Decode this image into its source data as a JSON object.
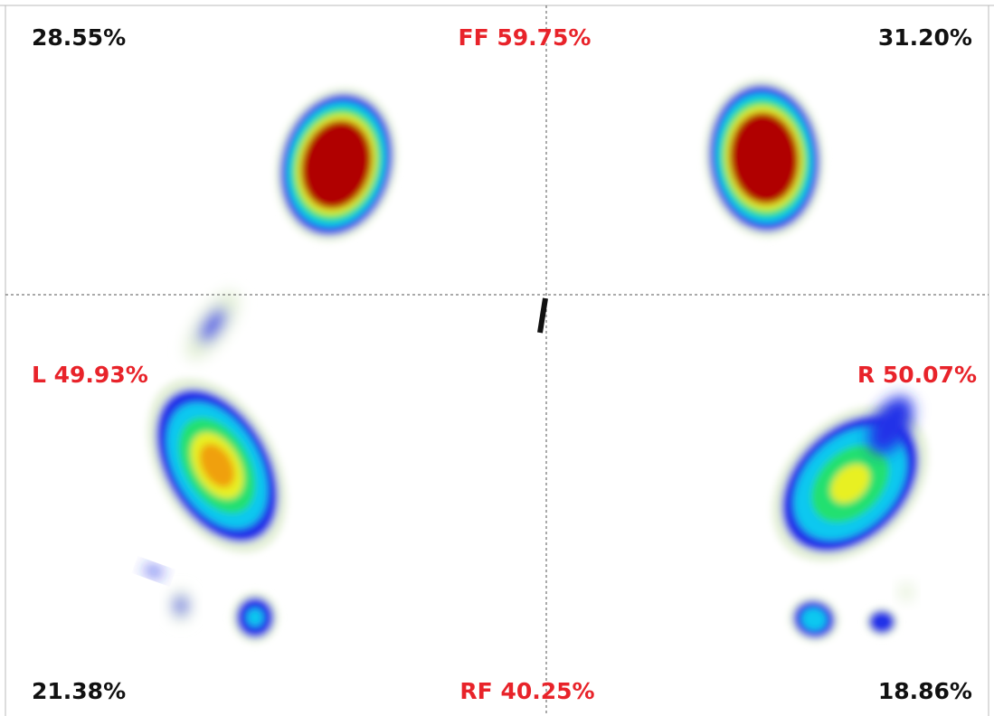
{
  "labels": {
    "top_left": "28.55%",
    "forefoot": "FF 59.75%",
    "top_right": "31.20%",
    "left": "L 49.93%",
    "right": "R 50.07%",
    "bottom_left": "21.38%",
    "rearfoot": "RF 40.25%",
    "bottom_right": "18.86%"
  }
}
